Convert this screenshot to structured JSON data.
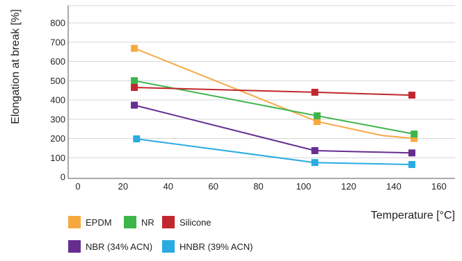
{
  "chart_data": {
    "type": "line",
    "xlabel": "Temperature [°C]",
    "ylabel": "Elongation at break [%]",
    "xlim": [
      -5,
      165
    ],
    "ylim": [
      0,
      850
    ],
    "x_ticks": [
      0,
      20,
      40,
      60,
      80,
      100,
      120,
      140,
      160
    ],
    "y_ticks": [
      0,
      100,
      200,
      300,
      400,
      500,
      600,
      700,
      800
    ],
    "grid": "horizontal",
    "legend_position": "bottom",
    "series": [
      {
        "name": "EPDM",
        "color": "#F7A941",
        "x": [
          25,
          106,
          135,
          149
        ],
        "y": [
          668,
          288,
          215,
          200
        ]
      },
      {
        "name": "NR",
        "color": "#3DB54A",
        "x": [
          25,
          106,
          149
        ],
        "y": [
          500,
          318,
          223
        ]
      },
      {
        "name": "Silicone",
        "color": "#C1272D",
        "x": [
          25,
          105,
          148
        ],
        "y": [
          465,
          440,
          425
        ]
      },
      {
        "name": "NBR (34% ACN)",
        "color": "#662D91",
        "x": [
          25,
          105,
          148
        ],
        "y": [
          373,
          137,
          125
        ]
      },
      {
        "name": "HNBR (39% ACN)",
        "color": "#29ABE2",
        "x": [
          26,
          105,
          148
        ],
        "y": [
          198,
          75,
          65
        ]
      }
    ]
  }
}
